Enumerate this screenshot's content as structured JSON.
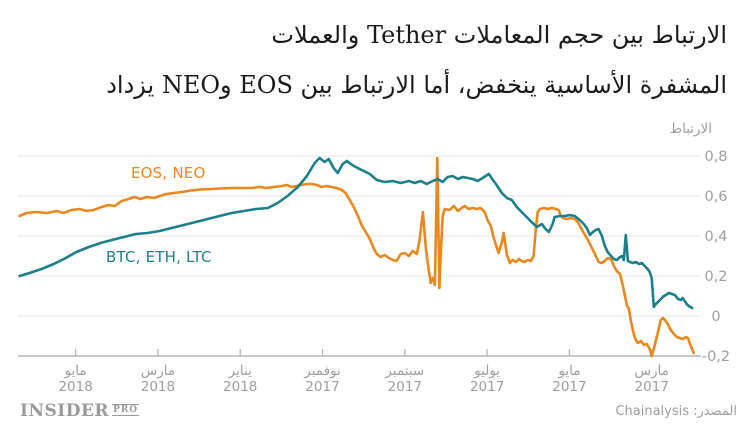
{
  "title": {
    "line1": "الارتباط بين حجم المعاملات Tether والعملات",
    "line2": "المشفرة الأساسية ينخفض، أما الارتباط بين EOS وNEO يزداد"
  },
  "source": {
    "label": "المصدر: Chainalysis"
  },
  "logo": {
    "name": "INSIDER",
    "suffix": "PRO"
  },
  "colors": {
    "orange": "#e8881f",
    "teal": "#1b7f8c",
    "grid": "#e5e5e5",
    "axis": "#b5b5b5",
    "label": "#9e9e9e",
    "title_text": "#1b1b1b"
  },
  "chart_data": {
    "type": "line",
    "title": "الارتباط بين حجم المعاملات Tether والعملات المشفرة الأساسية ينخفض، أما الارتباط بين EOS وNEO يزداد",
    "time_unit": "months_since_2017_01",
    "x_axis": {
      "direction": "reversed-time-rtl (newest on left)",
      "ticks": [
        {
          "t": 16,
          "month": "مايو",
          "year": "2018"
        },
        {
          "t": 14,
          "month": "مارس",
          "year": "2018"
        },
        {
          "t": 12,
          "month": "يناير",
          "year": "2018"
        },
        {
          "t": 10,
          "month": "نوفمبر",
          "year": "2017"
        },
        {
          "t": 8,
          "month": "سبتمبر",
          "year": "2017"
        },
        {
          "t": 6,
          "month": "يوليو",
          "year": "2017"
        },
        {
          "t": 4,
          "month": "مايو",
          "year": "2017"
        },
        {
          "t": 2,
          "month": "مارس",
          "year": "2017"
        }
      ]
    },
    "y_axis": {
      "label": "الارتباط",
      "range": [
        -0.25,
        0.85
      ],
      "ticks": [
        {
          "v": 0.8,
          "label": "0,8"
        },
        {
          "v": 0.6,
          "label": "0,6"
        },
        {
          "v": 0.4,
          "label": "0,4"
        },
        {
          "v": 0.2,
          "label": "0,2"
        },
        {
          "v": 0,
          "label": "0"
        },
        {
          "v": -0.2,
          "label": "-0,2"
        }
      ]
    },
    "legend_position": "inline-labels",
    "grid": true,
    "series": [
      {
        "id": "eos-neo",
        "name": "EOS, NEO",
        "color": "#e8881f",
        "points": [
          [
            17.36,
            0.5
          ],
          [
            17.19,
            0.515
          ],
          [
            16.95,
            0.52
          ],
          [
            16.7,
            0.515
          ],
          [
            16.46,
            0.525
          ],
          [
            16.29,
            0.515
          ],
          [
            16.1,
            0.53
          ],
          [
            15.9,
            0.535
          ],
          [
            15.73,
            0.525
          ],
          [
            15.56,
            0.53
          ],
          [
            15.37,
            0.545
          ],
          [
            15.2,
            0.555
          ],
          [
            15.05,
            0.55
          ],
          [
            14.88,
            0.575
          ],
          [
            14.71,
            0.585
          ],
          [
            14.57,
            0.595
          ],
          [
            14.42,
            0.585
          ],
          [
            14.27,
            0.595
          ],
          [
            14.1,
            0.59
          ],
          [
            13.96,
            0.6
          ],
          [
            13.79,
            0.61
          ],
          [
            13.62,
            0.615
          ],
          [
            13.42,
            0.62
          ],
          [
            13.18,
            0.628
          ],
          [
            12.94,
            0.633
          ],
          [
            12.69,
            0.635
          ],
          [
            12.45,
            0.638
          ],
          [
            12.21,
            0.64
          ],
          [
            11.96,
            0.64
          ],
          [
            11.72,
            0.64
          ],
          [
            11.53,
            0.645
          ],
          [
            11.36,
            0.64
          ],
          [
            11.19,
            0.645
          ],
          [
            10.99,
            0.65
          ],
          [
            10.87,
            0.655
          ],
          [
            10.75,
            0.645
          ],
          [
            10.63,
            0.65
          ],
          [
            10.51,
            0.655
          ],
          [
            10.38,
            0.66
          ],
          [
            10.26,
            0.66
          ],
          [
            10.14,
            0.655
          ],
          [
            10.02,
            0.645
          ],
          [
            9.9,
            0.65
          ],
          [
            9.78,
            0.645
          ],
          [
            9.66,
            0.64
          ],
          [
            9.53,
            0.63
          ],
          [
            9.44,
            0.615
          ],
          [
            9.34,
            0.58
          ],
          [
            9.24,
            0.545
          ],
          [
            9.14,
            0.5
          ],
          [
            9.05,
            0.455
          ],
          [
            8.95,
            0.42
          ],
          [
            8.85,
            0.385
          ],
          [
            8.76,
            0.34
          ],
          [
            8.68,
            0.31
          ],
          [
            8.59,
            0.295
          ],
          [
            8.49,
            0.305
          ],
          [
            8.39,
            0.29
          ],
          [
            8.29,
            0.28
          ],
          [
            8.2,
            0.275
          ],
          [
            8.1,
            0.31
          ],
          [
            8.0,
            0.315
          ],
          [
            7.9,
            0.3
          ],
          [
            7.81,
            0.325
          ],
          [
            7.71,
            0.31
          ],
          [
            7.64,
            0.38
          ],
          [
            7.56,
            0.52
          ],
          [
            7.49,
            0.34
          ],
          [
            7.42,
            0.23
          ],
          [
            7.37,
            0.165
          ],
          [
            7.32,
            0.19
          ],
          [
            7.27,
            0.155
          ],
          [
            7.21,
            0.79
          ],
          [
            7.16,
            0.14
          ],
          [
            7.13,
            0.3
          ],
          [
            7.08,
            0.5
          ],
          [
            7.03,
            0.535
          ],
          [
            6.91,
            0.53
          ],
          [
            6.81,
            0.55
          ],
          [
            6.71,
            0.525
          ],
          [
            6.62,
            0.54
          ],
          [
            6.54,
            0.55
          ],
          [
            6.45,
            0.535
          ],
          [
            6.35,
            0.54
          ],
          [
            6.25,
            0.535
          ],
          [
            6.16,
            0.54
          ],
          [
            6.06,
            0.52
          ],
          [
            5.99,
            0.48
          ],
          [
            5.91,
            0.45
          ],
          [
            5.84,
            0.39
          ],
          [
            5.77,
            0.345
          ],
          [
            5.72,
            0.315
          ],
          [
            5.64,
            0.37
          ],
          [
            5.6,
            0.415
          ],
          [
            5.52,
            0.305
          ],
          [
            5.45,
            0.265
          ],
          [
            5.38,
            0.28
          ],
          [
            5.3,
            0.27
          ],
          [
            5.23,
            0.285
          ],
          [
            5.16,
            0.275
          ],
          [
            5.09,
            0.27
          ],
          [
            5.01,
            0.28
          ],
          [
            4.94,
            0.275
          ],
          [
            4.87,
            0.3
          ],
          [
            4.82,
            0.43
          ],
          [
            4.77,
            0.52
          ],
          [
            4.72,
            0.535
          ],
          [
            4.62,
            0.54
          ],
          [
            4.53,
            0.535
          ],
          [
            4.43,
            0.54
          ],
          [
            4.33,
            0.535
          ],
          [
            4.26,
            0.53
          ],
          [
            4.21,
            0.5
          ],
          [
            4.16,
            0.49
          ],
          [
            4.06,
            0.485
          ],
          [
            3.97,
            0.49
          ],
          [
            3.87,
            0.485
          ],
          [
            3.8,
            0.47
          ],
          [
            3.72,
            0.44
          ],
          [
            3.65,
            0.415
          ],
          [
            3.58,
            0.39
          ],
          [
            3.5,
            0.36
          ],
          [
            3.43,
            0.33
          ],
          [
            3.36,
            0.3
          ],
          [
            3.29,
            0.27
          ],
          [
            3.21,
            0.265
          ],
          [
            3.14,
            0.275
          ],
          [
            3.07,
            0.29
          ],
          [
            2.99,
            0.285
          ],
          [
            2.92,
            0.25
          ],
          [
            2.85,
            0.225
          ],
          [
            2.77,
            0.21
          ],
          [
            2.7,
            0.15
          ],
          [
            2.65,
            0.1
          ],
          [
            2.6,
            0.05
          ],
          [
            2.56,
            0.04
          ],
          [
            2.51,
            -0.02
          ],
          [
            2.46,
            -0.07
          ],
          [
            2.41,
            -0.11
          ],
          [
            2.34,
            -0.135
          ],
          [
            2.26,
            -0.125
          ],
          [
            2.19,
            -0.145
          ],
          [
            2.12,
            -0.14
          ],
          [
            2.05,
            -0.165
          ],
          [
            2.0,
            -0.2
          ],
          [
            1.93,
            -0.15
          ],
          [
            1.85,
            -0.08
          ],
          [
            1.78,
            -0.02
          ],
          [
            1.73,
            -0.01
          ],
          [
            1.68,
            -0.02
          ],
          [
            1.61,
            -0.04
          ],
          [
            1.54,
            -0.07
          ],
          [
            1.46,
            -0.09
          ],
          [
            1.39,
            -0.105
          ],
          [
            1.32,
            -0.11
          ],
          [
            1.25,
            -0.115
          ],
          [
            1.17,
            -0.105
          ],
          [
            1.12,
            -0.11
          ],
          [
            1.07,
            -0.14
          ],
          [
            1.02,
            -0.165
          ],
          [
            0.98,
            -0.185
          ]
        ]
      },
      {
        "id": "btc-eth-ltc",
        "name": "BTC, ETH, LTC",
        "color": "#1b7f8c",
        "points": [
          [
            17.36,
            0.2
          ],
          [
            17.12,
            0.215
          ],
          [
            16.83,
            0.235
          ],
          [
            16.53,
            0.26
          ],
          [
            16.24,
            0.29
          ],
          [
            15.98,
            0.32
          ],
          [
            15.68,
            0.345
          ],
          [
            15.39,
            0.365
          ],
          [
            15.12,
            0.38
          ],
          [
            14.83,
            0.395
          ],
          [
            14.54,
            0.41
          ],
          [
            14.25,
            0.415
          ],
          [
            13.96,
            0.425
          ],
          [
            13.67,
            0.44
          ],
          [
            13.37,
            0.455
          ],
          [
            13.08,
            0.47
          ],
          [
            12.79,
            0.485
          ],
          [
            12.5,
            0.5
          ],
          [
            12.21,
            0.515
          ],
          [
            11.92,
            0.525
          ],
          [
            11.62,
            0.535
          ],
          [
            11.33,
            0.54
          ],
          [
            11.09,
            0.565
          ],
          [
            10.85,
            0.6
          ],
          [
            10.6,
            0.645
          ],
          [
            10.38,
            0.7
          ],
          [
            10.19,
            0.765
          ],
          [
            10.07,
            0.79
          ],
          [
            9.95,
            0.77
          ],
          [
            9.85,
            0.785
          ],
          [
            9.73,
            0.74
          ],
          [
            9.63,
            0.715
          ],
          [
            9.51,
            0.76
          ],
          [
            9.41,
            0.775
          ],
          [
            9.24,
            0.75
          ],
          [
            9.05,
            0.73
          ],
          [
            8.85,
            0.71
          ],
          [
            8.68,
            0.68
          ],
          [
            8.49,
            0.67
          ],
          [
            8.29,
            0.675
          ],
          [
            8.1,
            0.665
          ],
          [
            7.9,
            0.675
          ],
          [
            7.76,
            0.665
          ],
          [
            7.61,
            0.675
          ],
          [
            7.47,
            0.66
          ],
          [
            7.32,
            0.675
          ],
          [
            7.2,
            0.685
          ],
          [
            7.08,
            0.67
          ],
          [
            6.96,
            0.695
          ],
          [
            6.84,
            0.7
          ],
          [
            6.71,
            0.685
          ],
          [
            6.59,
            0.695
          ],
          [
            6.47,
            0.69
          ],
          [
            6.35,
            0.685
          ],
          [
            6.23,
            0.675
          ],
          [
            6.11,
            0.69
          ],
          [
            5.96,
            0.71
          ],
          [
            5.86,
            0.68
          ],
          [
            5.77,
            0.655
          ],
          [
            5.64,
            0.615
          ],
          [
            5.52,
            0.59
          ],
          [
            5.4,
            0.58
          ],
          [
            5.28,
            0.545
          ],
          [
            5.16,
            0.52
          ],
          [
            5.04,
            0.495
          ],
          [
            4.92,
            0.47
          ],
          [
            4.79,
            0.445
          ],
          [
            4.67,
            0.46
          ],
          [
            4.58,
            0.435
          ],
          [
            4.5,
            0.42
          ],
          [
            4.41,
            0.46
          ],
          [
            4.36,
            0.495
          ],
          [
            4.23,
            0.5
          ],
          [
            4.11,
            0.5
          ],
          [
            3.99,
            0.505
          ],
          [
            3.87,
            0.5
          ],
          [
            3.75,
            0.48
          ],
          [
            3.65,
            0.46
          ],
          [
            3.58,
            0.44
          ],
          [
            3.5,
            0.405
          ],
          [
            3.43,
            0.42
          ],
          [
            3.36,
            0.43
          ],
          [
            3.29,
            0.435
          ],
          [
            3.21,
            0.4
          ],
          [
            3.14,
            0.35
          ],
          [
            3.07,
            0.32
          ],
          [
            2.99,
            0.3
          ],
          [
            2.92,
            0.285
          ],
          [
            2.85,
            0.28
          ],
          [
            2.77,
            0.295
          ],
          [
            2.72,
            0.3
          ],
          [
            2.68,
            0.28
          ],
          [
            2.63,
            0.405
          ],
          [
            2.58,
            0.275
          ],
          [
            2.53,
            0.27
          ],
          [
            2.46,
            0.265
          ],
          [
            2.39,
            0.27
          ],
          [
            2.31,
            0.26
          ],
          [
            2.24,
            0.265
          ],
          [
            2.17,
            0.25
          ],
          [
            2.1,
            0.235
          ],
          [
            2.05,
            0.22
          ],
          [
            2.0,
            0.19
          ],
          [
            1.95,
            0.045
          ],
          [
            1.9,
            0.06
          ],
          [
            1.85,
            0.07
          ],
          [
            1.8,
            0.08
          ],
          [
            1.73,
            0.095
          ],
          [
            1.66,
            0.105
          ],
          [
            1.58,
            0.115
          ],
          [
            1.51,
            0.11
          ],
          [
            1.44,
            0.105
          ],
          [
            1.36,
            0.085
          ],
          [
            1.29,
            0.08
          ],
          [
            1.25,
            0.09
          ],
          [
            1.2,
            0.075
          ],
          [
            1.15,
            0.06
          ],
          [
            1.1,
            0.05
          ],
          [
            1.02,
            0.04
          ]
        ]
      }
    ]
  }
}
